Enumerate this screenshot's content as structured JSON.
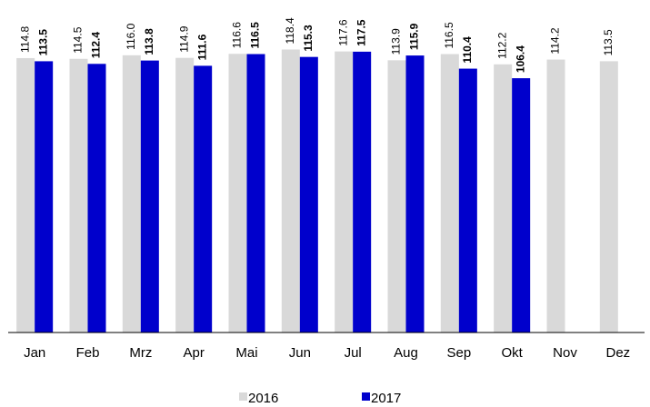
{
  "chart_data": {
    "type": "bar",
    "categories": [
      "Jan",
      "Feb",
      "Mrz",
      "Apr",
      "Mai",
      "Jun",
      "Jul",
      "Aug",
      "Sep",
      "Okt",
      "Nov",
      "Dez"
    ],
    "series": [
      {
        "name": "2016",
        "color": "#d9d9d9",
        "values": [
          114.8,
          114.5,
          116.0,
          114.9,
          116.6,
          118.4,
          117.6,
          113.9,
          116.5,
          112.2,
          114.2,
          113.5
        ],
        "value_labels": [
          "114.8",
          "114.5",
          "116.0",
          "114.9",
          "116.6",
          "118.4",
          "117.6",
          "113.9",
          "116.5",
          "112.2",
          "114.2",
          "113.5"
        ]
      },
      {
        "name": "2017",
        "color": "#0000cc",
        "values": [
          113.5,
          112.4,
          113.8,
          111.6,
          116.5,
          115.3,
          117.5,
          115.9,
          110.4,
          106.4,
          null,
          null
        ]
      }
    ],
    "ylim": [
      0,
      130
    ]
  }
}
